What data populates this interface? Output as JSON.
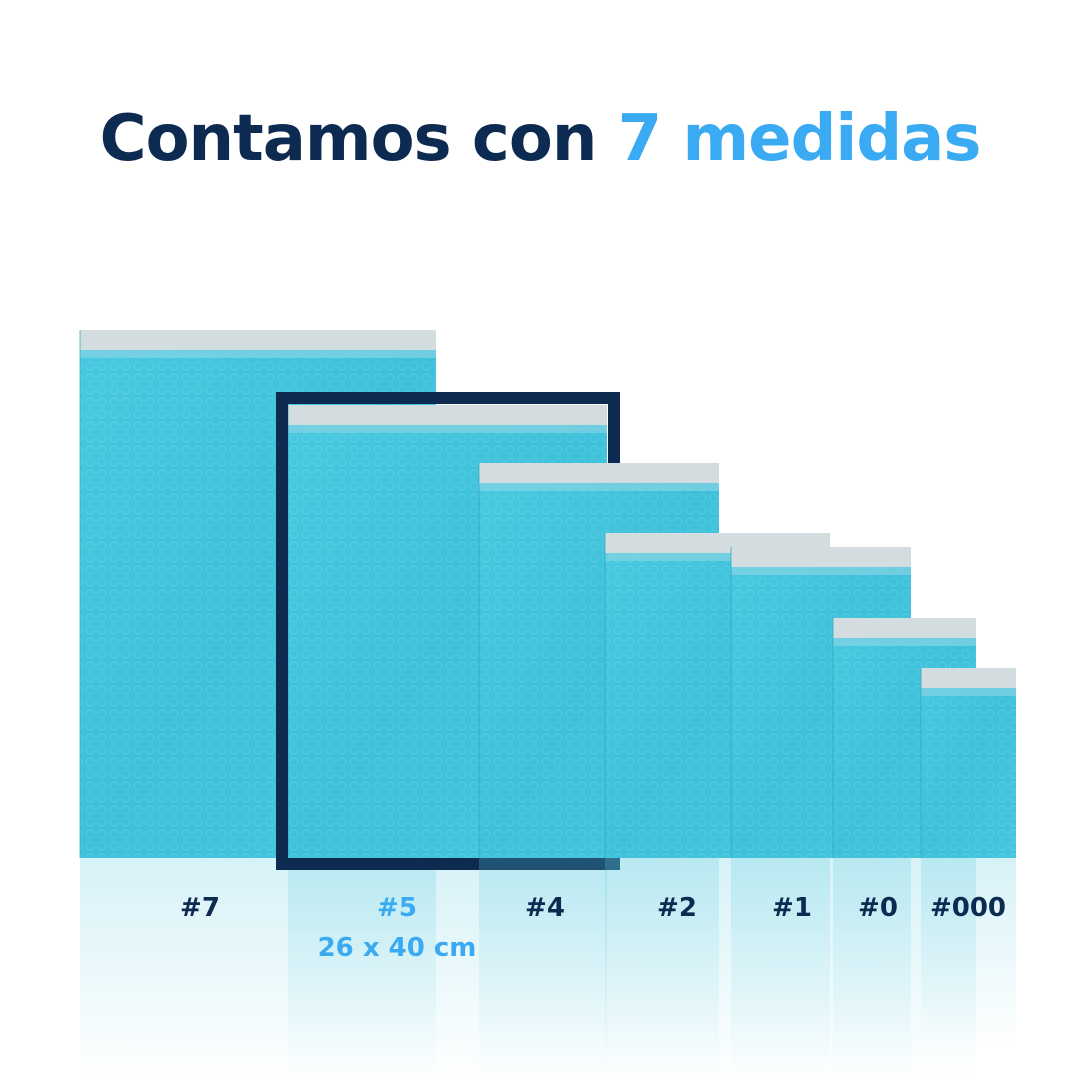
{
  "header": {
    "title": "Contamos con",
    "title_accent": "7 medidas"
  },
  "sizes": [
    "#7",
    "#5",
    "#4",
    "#2",
    "#1",
    "#0",
    "#000"
  ],
  "highlight_dimension": "26 x 40 cm"
}
